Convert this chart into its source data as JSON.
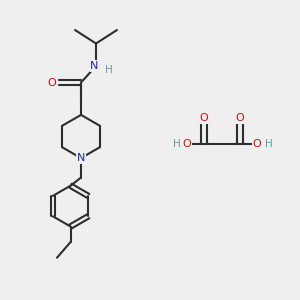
{
  "background_color": "#efefef",
  "bond_color": "#2d2d2d",
  "N_color": "#2222bb",
  "O_color": "#cc1111",
  "H_color": "#669999",
  "line_width": 1.5,
  "figsize": [
    3.0,
    3.0
  ],
  "dpi": 100,
  "xlim": [
    0,
    10
  ],
  "ylim": [
    0,
    10
  ]
}
